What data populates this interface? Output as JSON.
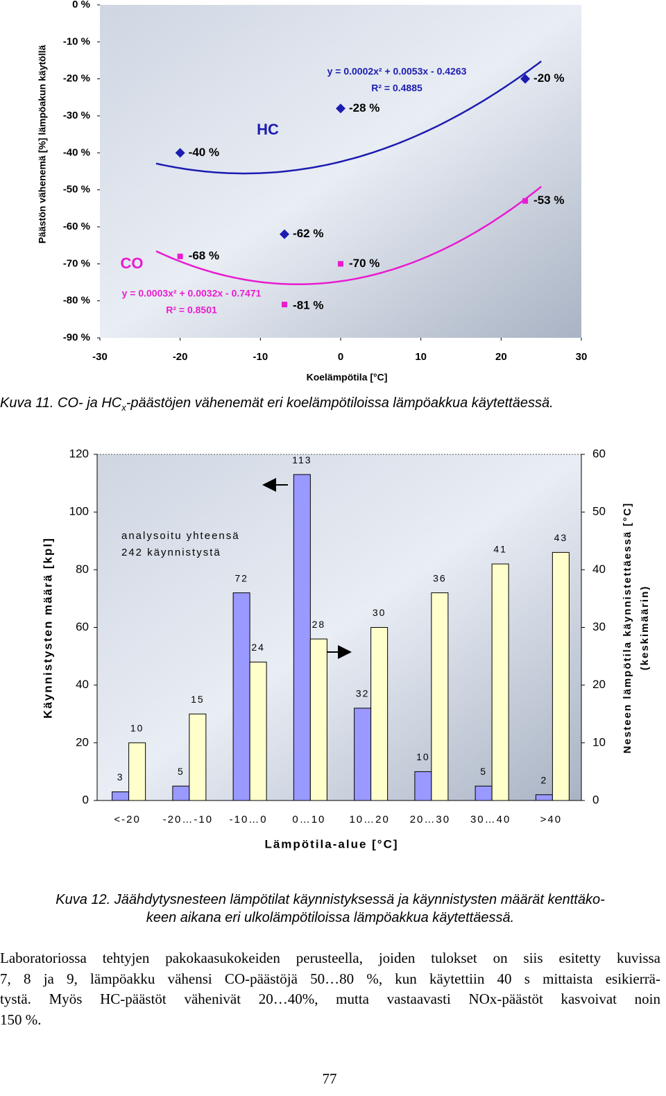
{
  "chart_data": [
    {
      "type": "scatter",
      "xlabel": "Koelämpötila [°C]",
      "ylabel": "Päästön vähenemä [%] lämpöakun käytöllä",
      "xlim": [
        -30,
        30
      ],
      "xticks": [
        -30,
        -20,
        -10,
        0,
        10,
        20,
        30
      ],
      "ylim": [
        -90,
        0
      ],
      "yticks": [
        {
          "value": 0,
          "label": "0 %"
        },
        {
          "value": -10,
          "label": "-10 %"
        },
        {
          "value": -20,
          "label": "-20 %"
        },
        {
          "value": -30,
          "label": "-30 %"
        },
        {
          "value": -40,
          "label": "-40 %"
        },
        {
          "value": -50,
          "label": "-50 %"
        },
        {
          "value": -60,
          "label": "-60 %"
        },
        {
          "value": -70,
          "label": "-70 %"
        },
        {
          "value": -80,
          "label": "-80 %"
        },
        {
          "value": -90,
          "label": "-90 %"
        }
      ],
      "series": [
        {
          "name": "HC",
          "color": "#1c1cb0",
          "marker": "diamond",
          "x": [
            -20,
            -7,
            0,
            23
          ],
          "values": [
            -40,
            -62,
            -28,
            -20
          ],
          "value_labels": [
            "-40 %",
            "-62 %",
            "-28 %",
            "-20 %"
          ],
          "trendline": {
            "equation": "y = 0.0002x² + 0.0053x - 0.4263",
            "r_squared": "R² = 0.4885"
          }
        },
        {
          "name": "CO",
          "color": "#e81cd0",
          "marker": "square",
          "x": [
            -20,
            -7,
            0,
            23
          ],
          "values": [
            -68,
            -81,
            -70,
            -53
          ],
          "value_labels": [
            "-68 %",
            "-81 %",
            "-70 %",
            "-53 %"
          ],
          "trendline": {
            "equation": "y = 0.0003x² + 0.0032x - 0.7471",
            "r_squared": "R² = 0.8501"
          }
        }
      ]
    },
    {
      "type": "bar",
      "xlabel": "Lämpötila-alue [°C]",
      "ylabel": "Käynnistysten määrä [kpl]",
      "y2label": [
        "Nesteen lämpötila käynnistettäessä [°C]",
        "(keskimäärin)"
      ],
      "annotation": [
        "analysoitu yhteensä",
        "242 käynnistystä"
      ],
      "categories": [
        "<-20",
        "-20…-10",
        "-10…0",
        "0…10",
        "10…20",
        "20…30",
        "30…40",
        ">40"
      ],
      "ylim": [
        0,
        120
      ],
      "yticks": [
        0,
        20,
        40,
        60,
        80,
        100,
        120
      ],
      "y2lim": [
        0,
        60
      ],
      "y2ticks": [
        0,
        10,
        20,
        30,
        40,
        50,
        60
      ],
      "series": [
        {
          "color": "#9999ff",
          "values": [
            3,
            5,
            72,
            113,
            32,
            10,
            5,
            2
          ]
        },
        {
          "color": "#ffffcc",
          "axis": "y2",
          "values": [
            10,
            15,
            24,
            28,
            30,
            36,
            41,
            43
          ]
        }
      ]
    }
  ],
  "captions": [
    {
      "before": "Kuva 11. CO- ja HC",
      "sub": "x",
      "after": "-päästöjen vähenemät eri koelämpötiloissa lämpöakkua käytettäessä."
    },
    {
      "lines": [
        "Kuva 12. Jäähdytysnesteen lämpötilat käynnistyksessä ja käynnistysten määrät kenttäko-",
        "keen aikana eri ulkolämpötiloissa lämpöakkua käytettäessä."
      ]
    }
  ],
  "body_text": [
    "Laboratoriossa tehtyjen pakokaasukokeiden perusteella, joiden tulokset on siis esitetty kuvissa",
    "7, 8 ja 9, lämpöakku vähensi CO-päästöjä 50…80 %, kun käytettiin 40 s mittaista esikierrä-",
    "tystä. Myös HC-päästöt vähenivät 20…40%, mutta vastaavasti NOx-päästöt kasvoivat noin",
    "150 %."
  ],
  "page_number": "77"
}
